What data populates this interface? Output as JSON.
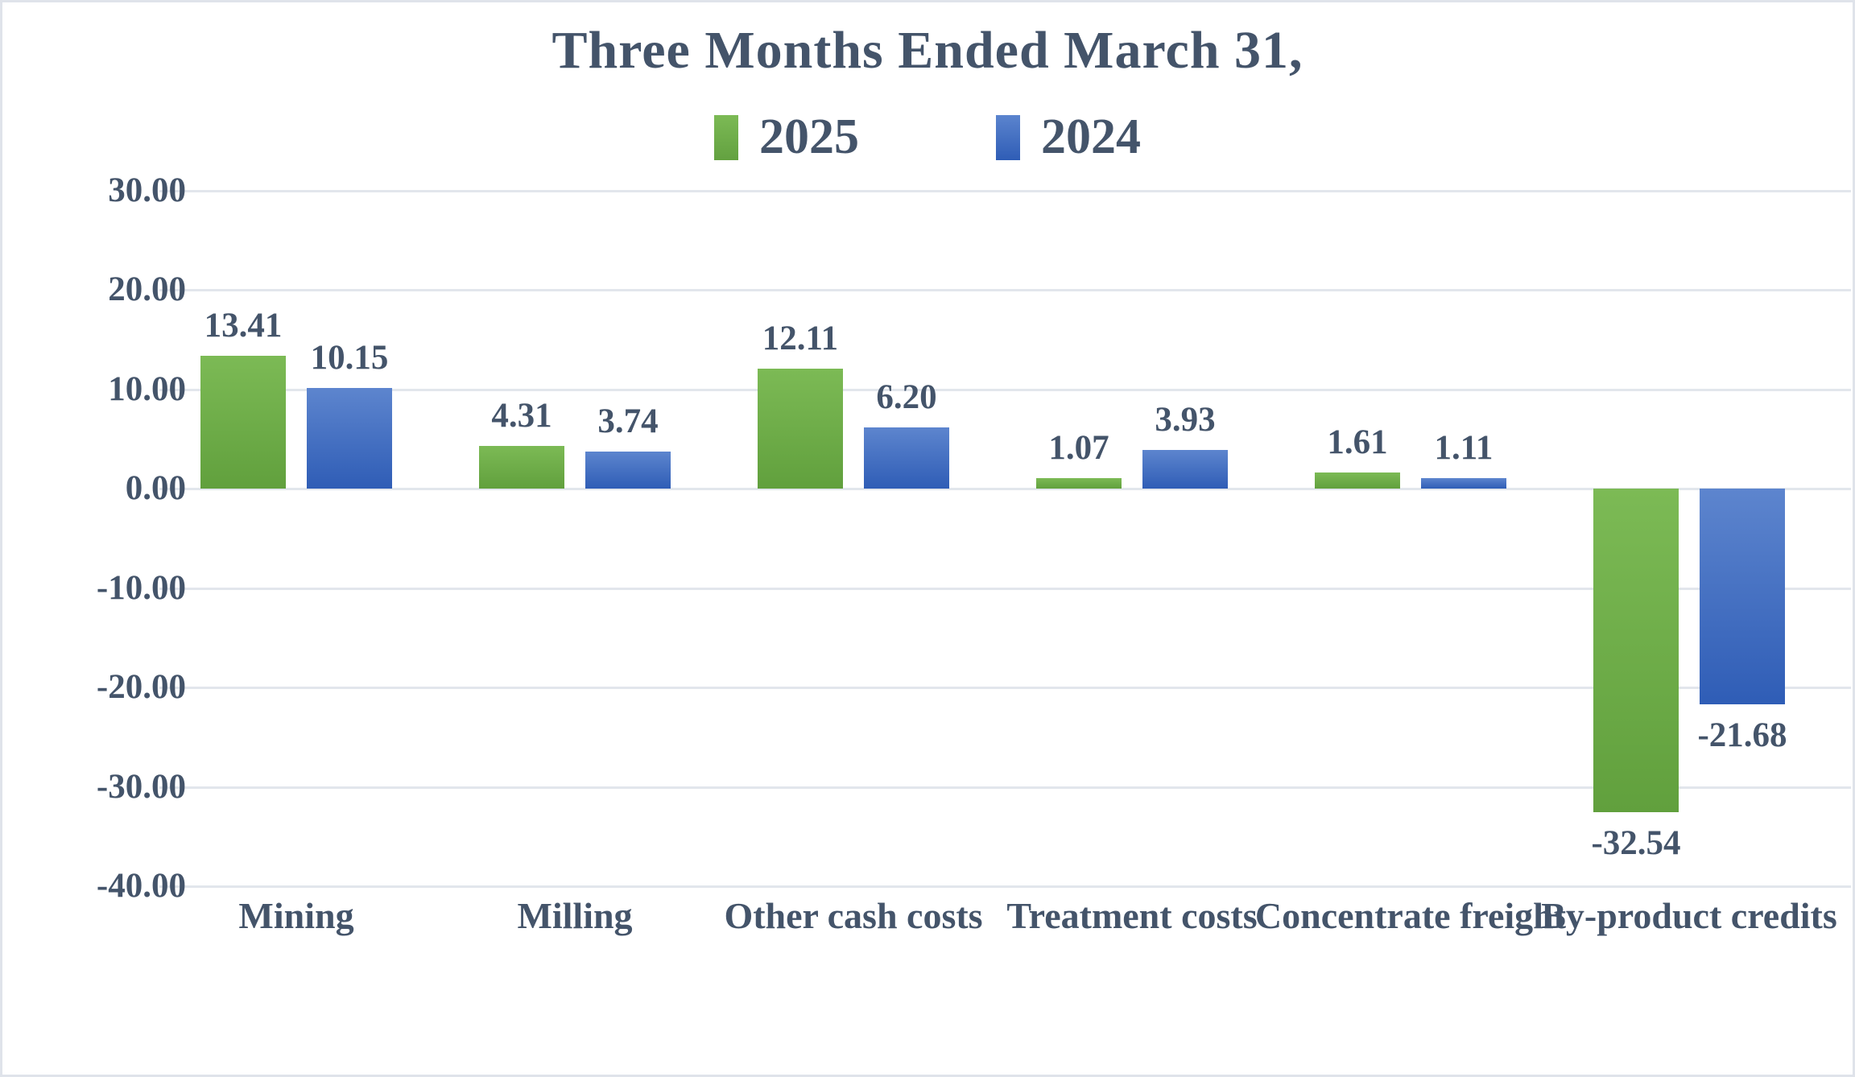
{
  "frame": {
    "background": "#ffffff",
    "border_color": "#dfe3ea"
  },
  "chart_data": {
    "type": "bar",
    "title": "Three Months Ended March 31,",
    "categories": [
      "Mining",
      "Milling",
      "Other cash costs",
      "Treatment costs",
      "Concentrate freight",
      "By-product credits"
    ],
    "series": [
      {
        "name": "2025",
        "color": "#70ad47",
        "gradient_top": "#7cba55",
        "gradient_bottom": "#61a03d",
        "values": [
          13.41,
          4.31,
          12.11,
          1.07,
          1.61,
          -32.54
        ]
      },
      {
        "name": "2024",
        "color": "#4472c4",
        "gradient_top": "#5d85ce",
        "gradient_bottom": "#2f5db6",
        "values": [
          10.15,
          3.74,
          6.2,
          3.93,
          1.11,
          -21.68
        ]
      }
    ],
    "value_labels": [
      "13.41",
      "10.15",
      "4.31",
      "3.74",
      "12.11",
      "6.20",
      "1.07",
      "3.93",
      "1.61",
      "1.11",
      "-32.54",
      "-21.68"
    ],
    "xlabel": "",
    "ylabel": "",
    "ylim": [
      -40,
      30
    ],
    "ytick_step": 10,
    "ytick_labels": [
      "30.00",
      "20.00",
      "10.00",
      "0.00",
      "-10.00",
      "-20.00",
      "-30.00",
      "-40.00"
    ],
    "grid": "horizontal",
    "legend_position": "top-center",
    "text_color": "#44546a",
    "gridline_color": "#e2e6ec"
  }
}
